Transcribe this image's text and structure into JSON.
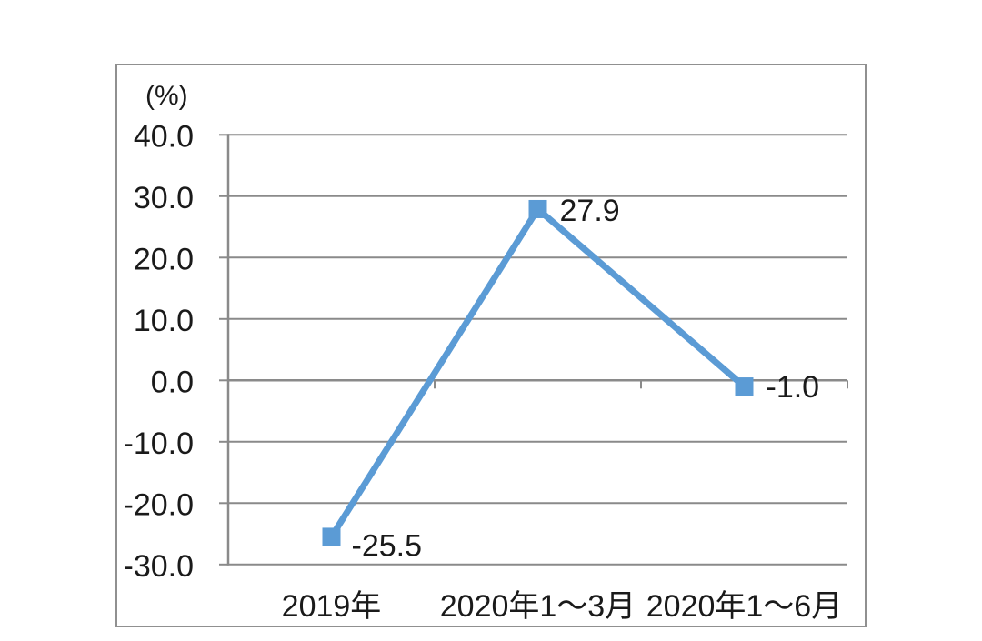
{
  "chart_data": {
    "type": "line",
    "title": "",
    "xlabel": "",
    "ylabel": "(%)",
    "categories": [
      "2019年",
      "2020年1～3月",
      "2020年1～6月"
    ],
    "series": [
      {
        "name": "",
        "values": [
          -25.5,
          27.9,
          -1.0
        ],
        "point_labels": [
          "-25.5",
          "27.9",
          "-1.0"
        ]
      }
    ],
    "ylim": [
      -30,
      40
    ],
    "yticks": [
      40,
      30,
      20,
      10,
      0,
      -10,
      -20,
      -30
    ],
    "ytick_labels": [
      "40.0",
      "30.0",
      "20.0",
      "10.0",
      "0.0",
      "-10.0",
      "-20.0",
      "-30.0"
    ],
    "grid": true,
    "legend": "none",
    "marker": "square",
    "colors": {
      "line": "#5B9BD5",
      "marker": "#5B9BD5",
      "grid": "#8A8A8A",
      "axis": "#8A8A8A",
      "frame_border": "#909090",
      "text": "#1A1A1A",
      "background": "#FFFFFF"
    }
  }
}
